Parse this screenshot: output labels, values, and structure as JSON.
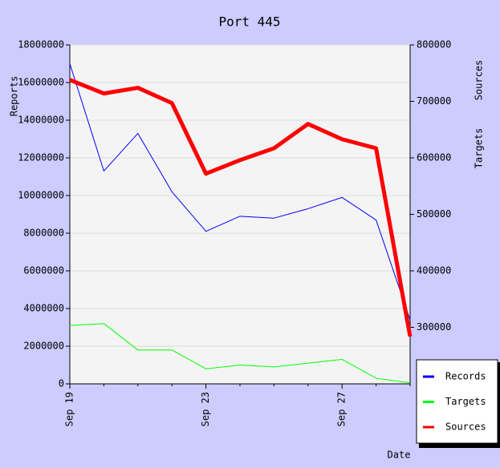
{
  "chart_data": {
    "type": "line",
    "title": "Port 445",
    "y_label": "Reports",
    "y2_labels": [
      "Sources",
      "Targets"
    ],
    "x_label": "Date",
    "categories": [
      "Sep 19",
      null,
      null,
      null,
      "Sep 23",
      null,
      null,
      null,
      "Sep 27",
      null,
      null
    ],
    "series": [
      {
        "name": "Records",
        "color": "#0000ff",
        "axis": "y",
        "width": 1,
        "values": [
          17000000,
          11300000,
          13300000,
          10200000,
          8100000,
          8900000,
          8800000,
          9300000,
          9900000,
          8700000,
          3400000
        ]
      },
      {
        "name": "Targets",
        "color": "#00ff00",
        "axis": "y",
        "width": 1,
        "values": [
          3100000,
          3200000,
          1800000,
          1800000,
          800000,
          1000000,
          900000,
          1100000,
          1300000,
          300000,
          50000
        ]
      },
      {
        "name": "Sources",
        "color": "#ff0000",
        "axis": "y2",
        "width": 5,
        "values": [
          738000,
          714000,
          724000,
          697000,
          572000,
          596000,
          617000,
          660000,
          633000,
          617000,
          284000
        ]
      }
    ],
    "ylim": [
      0,
      18000000
    ],
    "yticks": [
      0,
      2000000,
      4000000,
      6000000,
      8000000,
      10000000,
      12000000,
      14000000,
      16000000,
      18000000
    ],
    "y2lim": [
      200000,
      800000
    ],
    "y2ticks": [
      300000,
      400000,
      500000,
      600000,
      700000,
      800000
    ],
    "grid": true,
    "legend": "bottom-right"
  }
}
